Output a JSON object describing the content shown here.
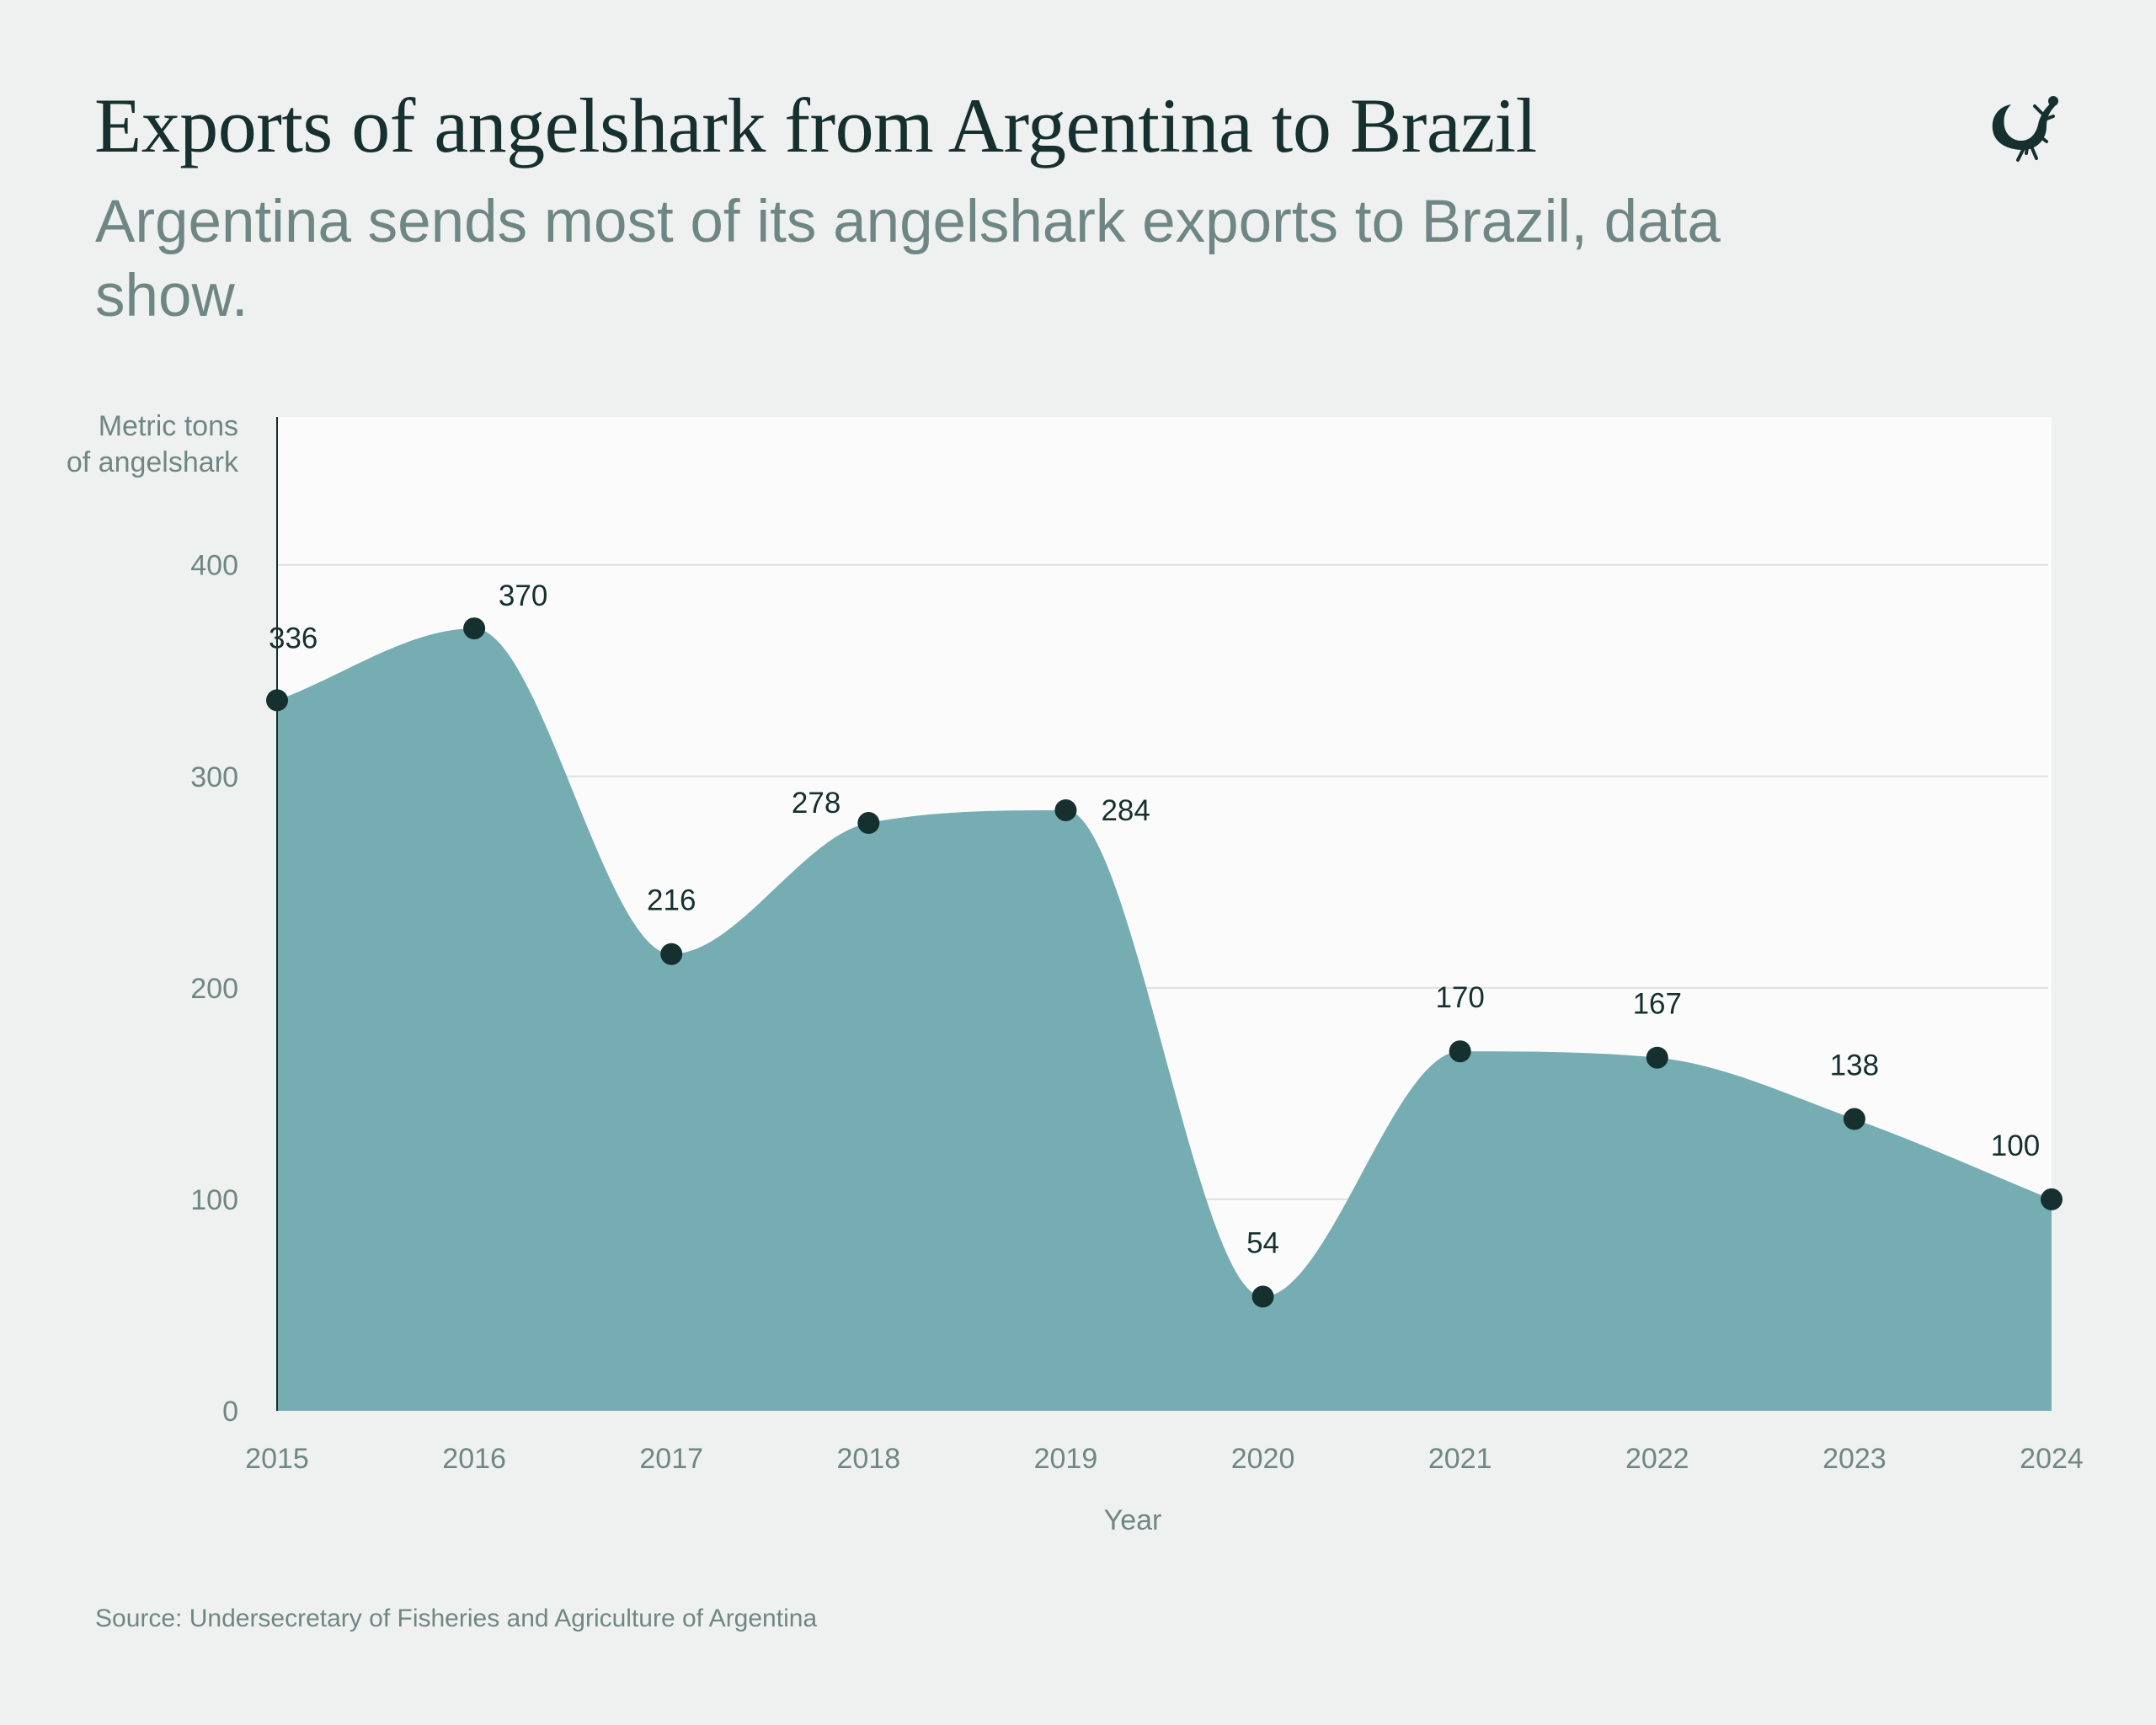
{
  "title": "Exports of angelshark from Argentina to Brazil",
  "subtitle": "Argentina sends most of its angelshark exports to Brazil, data show.",
  "source": "Source: Undersecretary of Fisheries and Agriculture of Argentina",
  "logo_icon": "lizard-icon",
  "colors": {
    "background": "#eff1f0",
    "plot_background": "#fbfbfb",
    "area_fill": "#75adb3",
    "marker": "#15302f",
    "title": "#15302f",
    "muted_text": "#6f8784",
    "gridline": "#dde2e1"
  },
  "chart_data": {
    "type": "area",
    "title": "Exports of angelshark from Argentina to Brazil",
    "xlabel": "Year",
    "ylabel_lines": [
      "Metric tons",
      "of angelshark"
    ],
    "x": [
      2015,
      2016,
      2017,
      2018,
      2019,
      2020,
      2021,
      2022,
      2023,
      2024
    ],
    "x_tick_labels": [
      "2015",
      "2016",
      "2017",
      "2018",
      "2019",
      "2020",
      "2021",
      "2022",
      "2023",
      "2024"
    ],
    "values": [
      336,
      370,
      216,
      278,
      284,
      54,
      170,
      167,
      138,
      100
    ],
    "data_labels": [
      "336",
      "370",
      "216",
      "278",
      "284",
      "54",
      "170",
      "167",
      "138",
      "100"
    ],
    "ylim": [
      0,
      470
    ],
    "y_ticks": [
      0,
      100,
      200,
      300,
      400
    ],
    "y_tick_labels": [
      "0",
      "100",
      "200",
      "300",
      "400"
    ],
    "grid": true,
    "legend": "none"
  }
}
